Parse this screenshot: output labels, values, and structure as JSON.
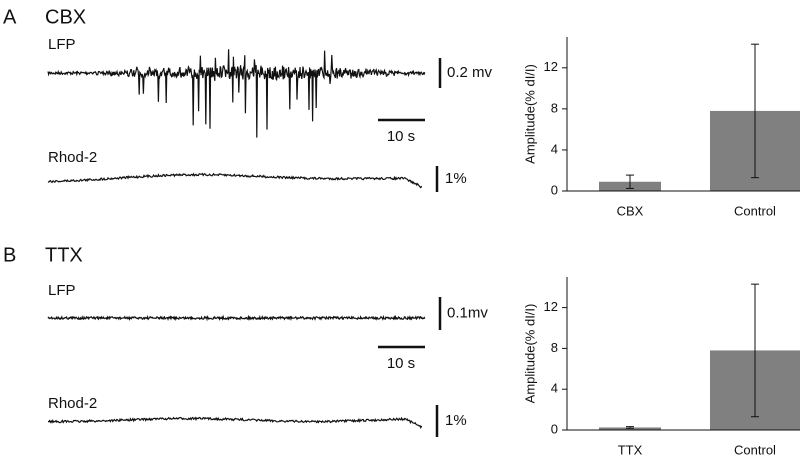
{
  "chart_data": [
    {
      "type": "bar",
      "ylabel": "Amplitude(% dI/I)",
      "categories": [
        "CBX",
        "Control"
      ],
      "values": [
        0.9,
        7.8
      ],
      "errors": [
        0.65,
        6.5
      ],
      "color": "#808080",
      "ylim": [
        0,
        15
      ],
      "yticks": [
        0,
        4,
        8,
        12
      ]
    },
    {
      "type": "bar",
      "ylabel": "Amplitude(% dI/I)",
      "categories": [
        "TTX",
        "Control"
      ],
      "values": [
        0.25,
        7.8
      ],
      "errors": [
        0.08,
        6.5
      ],
      "color": "#808080",
      "ylim": [
        0,
        15
      ],
      "yticks": [
        0,
        4,
        8,
        12
      ]
    }
  ],
  "panels": [
    {
      "letter": "A",
      "title": "CBX",
      "traces": [
        {
          "label": "LFP",
          "scale": "0.2 mv"
        },
        {
          "label": "Rhod-2",
          "scale": "1%"
        }
      ],
      "time_scale": "10 s"
    },
    {
      "letter": "B",
      "title": "TTX",
      "traces": [
        {
          "label": "LFP",
          "scale": "0.1mv"
        },
        {
          "label": "Rhod-2",
          "scale": "1%"
        }
      ],
      "time_scale": "10 s"
    }
  ]
}
